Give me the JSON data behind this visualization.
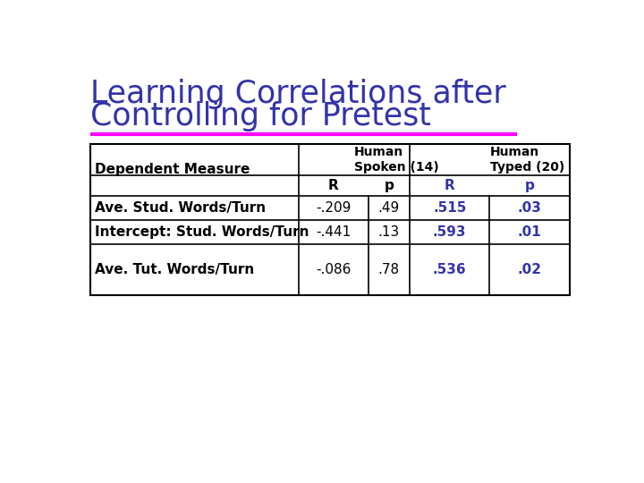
{
  "title_line1": "Learning Correlations after",
  "title_line2": "Controlling for Pretest",
  "title_color": "#3333AA",
  "separator_color": "#FF00FF",
  "background_color": "#FFFFFF",
  "table": {
    "header1": [
      "Human\nSpoken (14)",
      "Human\nTyped (20)"
    ],
    "header2_labels": [
      "R",
      "p",
      "R",
      "p"
    ],
    "header2_highlight": [
      false,
      false,
      true,
      true
    ],
    "dep_measure_label": "Dependent Measure",
    "rows": [
      [
        "Ave. Stud. Words/Turn",
        "-.209",
        ".49",
        ".515",
        ".03"
      ],
      [
        "Intercept: Stud. Words/Turn",
        "-.441",
        ".13",
        ".593",
        ".01"
      ],
      [
        "Ave. Tut. Words/Turn",
        "-.086",
        ".78",
        ".536",
        ".02"
      ]
    ],
    "data_highlight": [
      false,
      false,
      true,
      true
    ],
    "highlight_color": "#3333AA",
    "normal_color": "#000000"
  }
}
